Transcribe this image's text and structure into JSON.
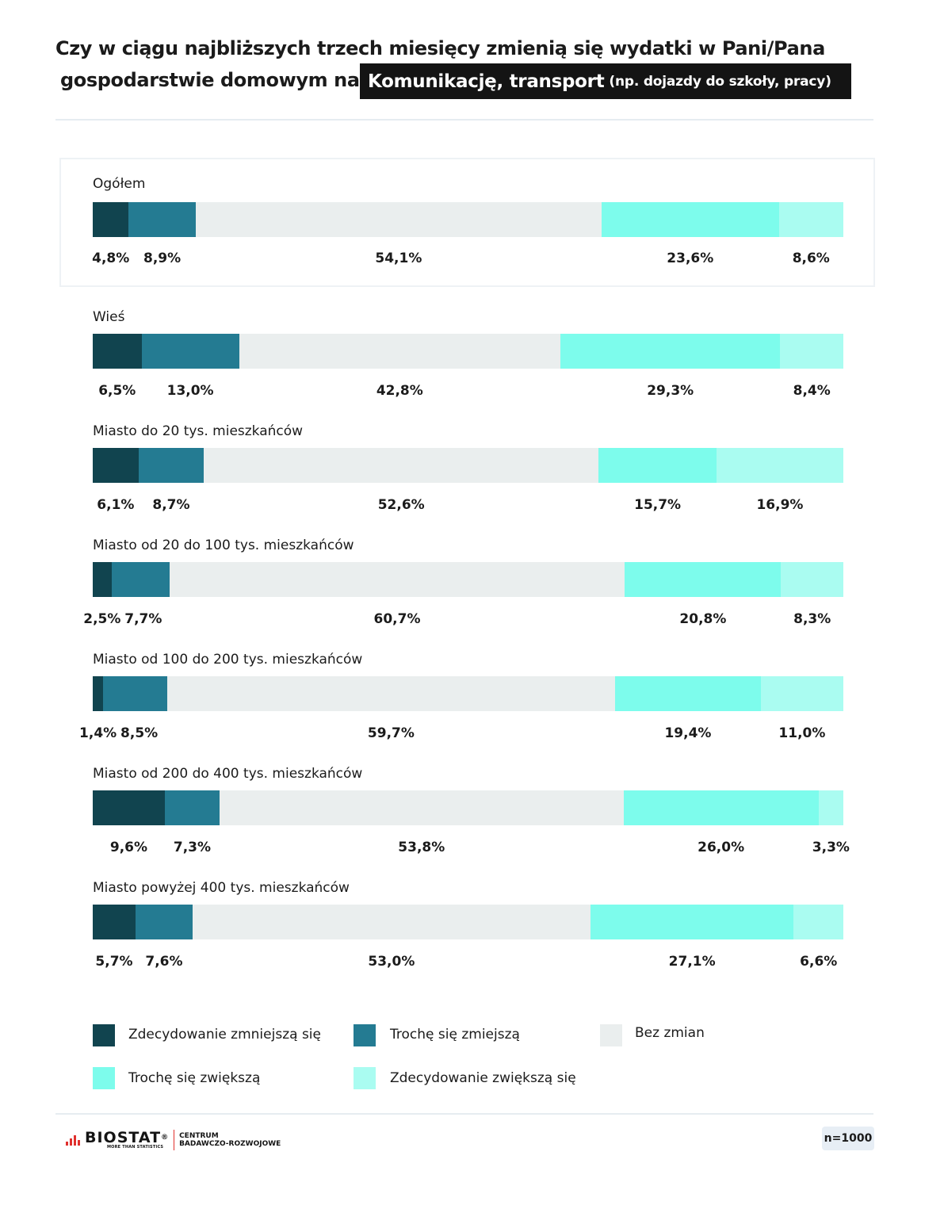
{
  "title": {
    "line1": "Czy w ciągu najbliższych trzech miesięcy zmienią się wydatki w Pani/Pana",
    "line2": "gospodarstwie domowym na:",
    "topic_main": "Komunikację, transport",
    "topic_sub": "(np. dojazdy do szkoły, pracy)"
  },
  "chart_data": {
    "type": "bar",
    "orientation": "horizontal",
    "stacked": true,
    "percent_stacked": true,
    "categories": [
      "Ogółem",
      "Wieś",
      "Miasto do 20 tys. mieszkańców",
      "Miasto od 20 do 100 tys. mieszkańców",
      "Miasto od 100 do 200 tys. mieszkańców",
      "Miasto od 200 do 400 tys. mieszkańców",
      "Miasto powyżej 400 tys. mieszkańców"
    ],
    "series": [
      {
        "name": "Zdecydowanie zmniejszą się",
        "color": "#11444f",
        "values": [
          4.8,
          6.5,
          6.1,
          2.5,
          1.4,
          9.6,
          5.7
        ],
        "labels": [
          "4,8%",
          "6,5%",
          "6,1%",
          "2,5%",
          "1,4%",
          "9,6%",
          "5,7%"
        ]
      },
      {
        "name": "Trochę się zmiejszą",
        "color": "#247b92",
        "values": [
          8.9,
          13.0,
          8.7,
          7.7,
          8.5,
          7.3,
          7.6
        ],
        "labels": [
          "8,9%",
          "13,0%",
          "8,7%",
          "7,7%",
          "8,5%",
          "7,3%",
          "7,6%"
        ]
      },
      {
        "name": "Bez zmian",
        "color": "#eaeeee",
        "values": [
          54.1,
          42.8,
          52.6,
          60.7,
          59.7,
          53.8,
          53.0
        ],
        "labels": [
          "54,1%",
          "42,8%",
          "52,6%",
          "60,7%",
          "59,7%",
          "53,8%",
          "53,0%"
        ]
      },
      {
        "name": "Trochę się zwiększą",
        "color": "#7dfcec",
        "values": [
          23.6,
          29.3,
          15.7,
          20.8,
          19.4,
          26.0,
          27.1
        ],
        "labels": [
          "23,6%",
          "29,3%",
          "15,7%",
          "20,8%",
          "19,4%",
          "26,0%",
          "27,1%"
        ]
      },
      {
        "name": "Zdecydowanie zwiększą się",
        "color": "#aafcf1",
        "values": [
          8.6,
          8.4,
          16.9,
          8.3,
          11.0,
          3.3,
          6.6
        ],
        "labels": [
          "8,6%",
          "8,4%",
          "16,9%",
          "8,3%",
          "11,0%",
          "3,3%",
          "6,6%"
        ]
      }
    ],
    "highlighted_category": "Ogółem",
    "legend_position": "bottom"
  },
  "footer": {
    "logo_name": "BIOSTAT",
    "logo_tagline": "MORE THAN STATISTICS",
    "center_line1": "CENTRUM",
    "center_line2": "BADAWCZO-ROZWOJOWE",
    "sample": "n=1000"
  }
}
